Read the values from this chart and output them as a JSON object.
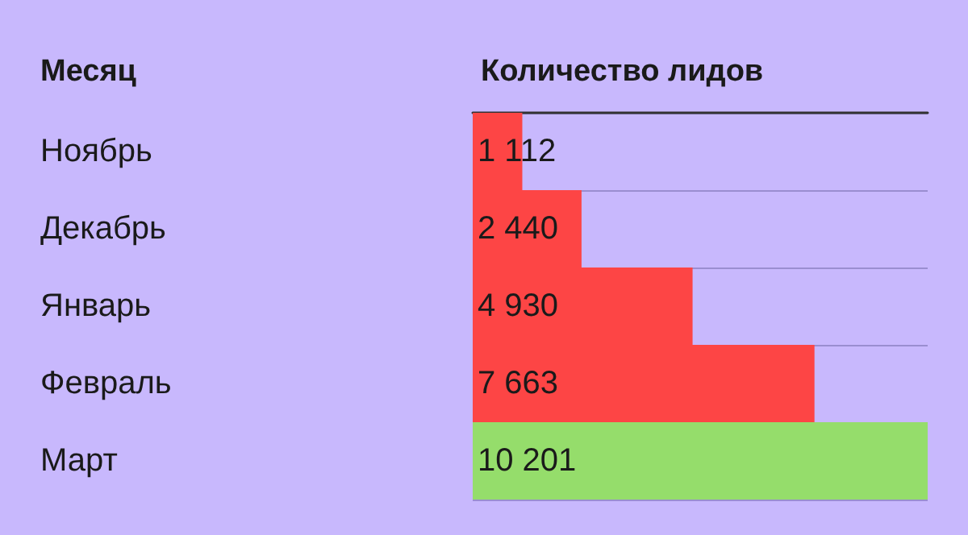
{
  "chart_data": {
    "type": "bar",
    "orientation": "horizontal",
    "ylabel": "Месяц",
    "xlabel": "Количество лидов",
    "categories": [
      "Ноябрь",
      "Декабрь",
      "Январь",
      "Февраль",
      "Март"
    ],
    "values": [
      1112,
      2440,
      4930,
      7663,
      10201
    ],
    "value_labels": [
      "1 112",
      "2 440",
      "4 930",
      "7 663",
      "10 201"
    ],
    "colors": [
      "#fd4545",
      "#fd4545",
      "#fd4545",
      "#fd4545",
      "#95dd6b"
    ],
    "grid": "y"
  }
}
